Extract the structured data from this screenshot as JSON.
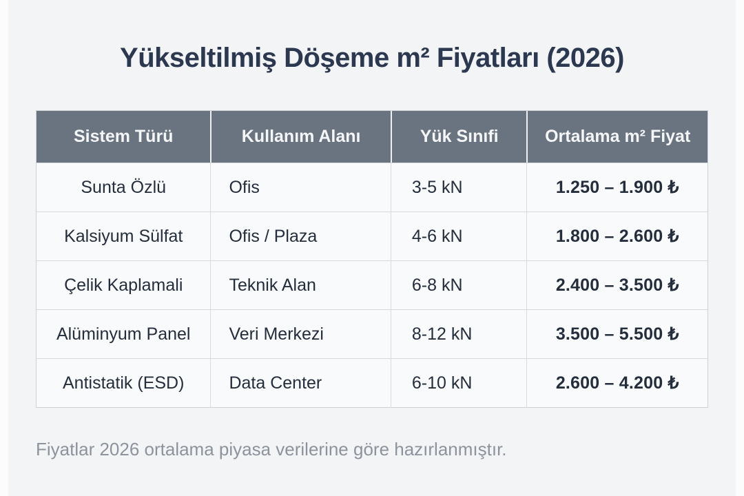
{
  "page": {
    "title": "Yükseltilmiş Döşeme m² Fiyatları (2026)",
    "footnote": "Fiyatlar 2026 ortalama piyasa verilerine göre hazırlanmıştır."
  },
  "colors": {
    "page_bg": "#f3f4f6",
    "header_bg": "#6a7380",
    "header_text": "#f4f6f8",
    "title_text": "#2b3850",
    "body_text": "#242d3c",
    "price_text": "#1f2836",
    "footnote_text": "#8d939c",
    "border": "#d6d8dc",
    "cell_bg": "#f9fafb"
  },
  "table": {
    "headers": [
      "Sistem Türü",
      "Kullanım Alanı",
      "Yük Sınıfi",
      "Ortalama m² Fiyat"
    ],
    "rows": [
      {
        "system": "Sunta Özlü",
        "usage": "Ofis",
        "load": "3-5 kN",
        "price": "1.250 – 1.900 ₺"
      },
      {
        "system": "Kalsiyum Sülfat",
        "usage": "Ofis / Plaza",
        "load": "4-6 kN",
        "price": "1.800 – 2.600 ₺"
      },
      {
        "system": "Çelik Kaplamali",
        "usage": "Teknik Alan",
        "load": "6-8 kN",
        "price": "2.400 – 3.500 ₺"
      },
      {
        "system": "Alüminyum Panel",
        "usage": "Veri Merkezi",
        "load": "8-12 kN",
        "price": "3.500 – 5.500 ₺"
      },
      {
        "system": "Antistatik (ESD)",
        "usage": "Data Center",
        "load": "6-10 kN",
        "price": "2.600 – 4.200 ₺"
      }
    ]
  },
  "chart_data": {
    "type": "table",
    "title": "Yükseltilmiş Döşeme m² Fiyatları (2026)",
    "columns": [
      "Sistem Türü",
      "Kullanım Alanı",
      "Yük Sınıfi",
      "Ortalama m² Fiyat"
    ],
    "rows": [
      [
        "Sunta Özlü",
        "Ofis",
        "3-5 kN",
        "1.250 – 1.900 ₺"
      ],
      [
        "Kalsiyum Sülfat",
        "Ofis / Plaza",
        "4-6 kN",
        "1.800 – 2.600 ₺"
      ],
      [
        "Çelik Kaplamali",
        "Teknik Alan",
        "6-8 kN",
        "2.400 – 3.500 ₺"
      ],
      [
        "Alüminyum Panel",
        "Veri Merkezi",
        "8-12 kN",
        "3.500 – 5.500 ₺"
      ],
      [
        "Antistatik (ESD)",
        "Data Center",
        "6-10 kN",
        "2.600 – 4.200 ₺"
      ]
    ],
    "price_ranges_try_per_m2": [
      {
        "system": "Sunta Özlü",
        "min": 1250,
        "max": 1900
      },
      {
        "system": "Kalsiyum Sülfat",
        "min": 1800,
        "max": 2600
      },
      {
        "system": "Çelik Kaplamali",
        "min": 2400,
        "max": 3500
      },
      {
        "system": "Alüminyum Panel",
        "min": 3500,
        "max": 5500
      },
      {
        "system": "Antistatik (ESD)",
        "min": 2600,
        "max": 4200
      }
    ],
    "footnote": "Fiyatlar 2026 ortalama piyasa verilerine göre hazırlanmıştır."
  }
}
